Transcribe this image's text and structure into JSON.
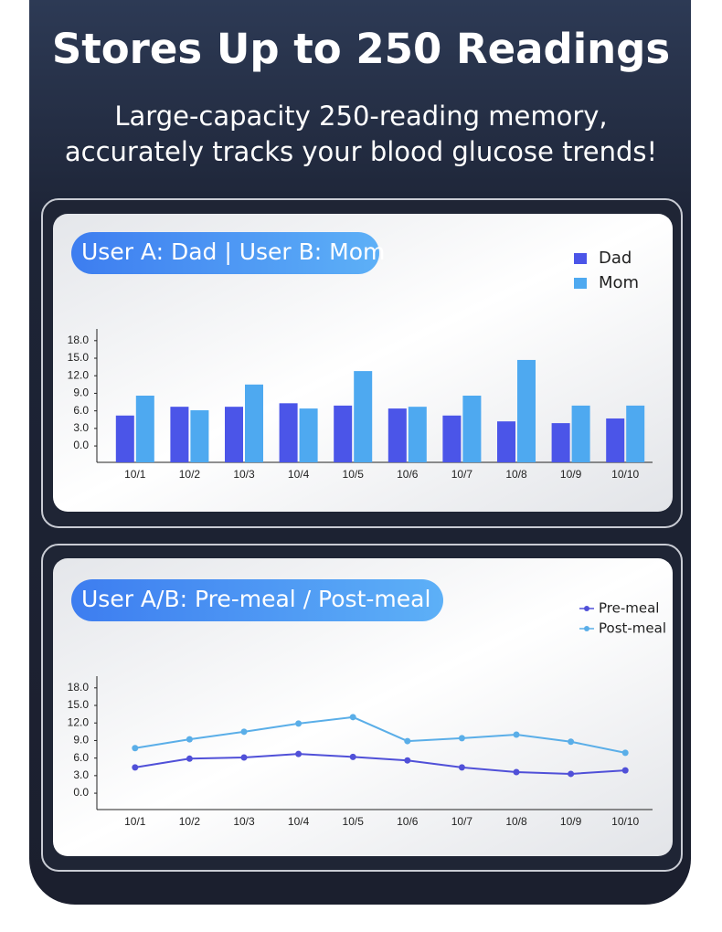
{
  "header": {
    "title": "Stores Up to 250 Readings",
    "subtitle": [
      "Large-capacity 250-reading memory,",
      "accurately tracks your blood glucose trends!"
    ]
  },
  "chart_data": [
    {
      "type": "bar",
      "title": "User A: Dad | User B: Mom",
      "categories": [
        "10/1",
        "10/2",
        "10/3",
        "10/4",
        "10/5",
        "10/6",
        "10/7",
        "10/8",
        "10/9",
        "10/10"
      ],
      "series": [
        {
          "name": "Dad",
          "color": "#4b55e8",
          "values": [
            5.2,
            6.7,
            6.7,
            7.3,
            6.9,
            6.4,
            5.2,
            4.2,
            3.9,
            4.7
          ]
        },
        {
          "name": "Mom",
          "color": "#4ea9f0",
          "values": [
            8.6,
            6.1,
            10.5,
            6.4,
            12.8,
            6.7,
            8.6,
            14.7,
            6.9,
            6.9
          ]
        }
      ],
      "ylim": [
        -2.8,
        20
      ],
      "yticks": [
        {
          "value": 0,
          "label": "0.0"
        },
        {
          "value": 3,
          "label": "3.0"
        },
        {
          "value": 6,
          "label": "6.0"
        },
        {
          "value": 9,
          "label": "9.0"
        },
        {
          "value": 12,
          "label": "12.0"
        },
        {
          "value": 15,
          "label": "15.0"
        },
        {
          "value": 18,
          "label": "18.0"
        }
      ],
      "legend": "top-right"
    },
    {
      "type": "line",
      "title": "User A/B: Pre-meal / Post-meal",
      "categories": [
        "10/1",
        "10/2",
        "10/3",
        "10/4",
        "10/5",
        "10/6",
        "10/7",
        "10/8",
        "10/9",
        "10/10"
      ],
      "series": [
        {
          "name": "Pre-meal",
          "color": "#5050d8",
          "values": [
            4.4,
            5.9,
            6.1,
            6.7,
            6.2,
            5.6,
            4.4,
            3.6,
            3.3,
            3.9
          ]
        },
        {
          "name": "Post-meal",
          "color": "#5aaee8",
          "values": [
            7.7,
            9.2,
            10.5,
            11.9,
            13.0,
            8.9,
            9.4,
            10.0,
            8.8,
            6.9
          ]
        }
      ],
      "ylim": [
        -2.8,
        20
      ],
      "yticks": [
        {
          "value": 0,
          "label": "0.0"
        },
        {
          "value": 3,
          "label": "3.0"
        },
        {
          "value": 6,
          "label": "6.0"
        },
        {
          "value": 9,
          "label": "9.0"
        },
        {
          "value": 12,
          "label": "12.0"
        },
        {
          "value": 15,
          "label": "15.0"
        },
        {
          "value": 18,
          "label": "18.0"
        }
      ],
      "legend": "top-right"
    }
  ]
}
